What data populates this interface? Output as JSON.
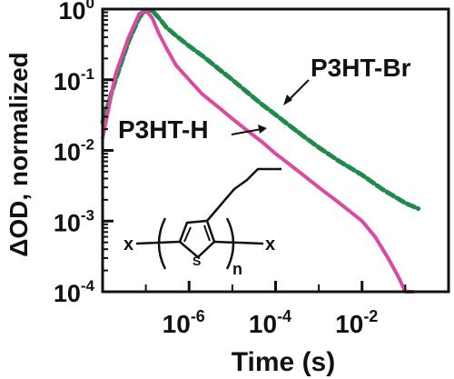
{
  "chart_data": {
    "type": "line",
    "xlabel": "Time (s)",
    "ylabel": "ΔOD, normalized",
    "xscale": "log",
    "yscale": "log",
    "xlim": [
      1e-08,
      1
    ],
    "ylim": [
      0.0001,
      1
    ],
    "x_ticks": [
      {
        "value": 1e-06,
        "base": "10",
        "exp": "-6"
      },
      {
        "value": 0.0001,
        "base": "10",
        "exp": "-4"
      },
      {
        "value": 0.01,
        "base": "10",
        "exp": "-2"
      }
    ],
    "y_ticks": [
      {
        "value": 1,
        "base": "10",
        "exp": "0"
      },
      {
        "value": 0.1,
        "base": "10",
        "exp": "-1"
      },
      {
        "value": 0.01,
        "base": "10",
        "exp": "-2"
      },
      {
        "value": 0.001,
        "base": "10",
        "exp": "-3"
      },
      {
        "value": 0.0001,
        "base": "10",
        "exp": "-4"
      }
    ],
    "series": [
      {
        "name": "P3HT-Br",
        "color": "#1f8a4c",
        "x": [
          1e-08,
          2e-08,
          4e-08,
          7e-08,
          1e-07,
          1.4e-07,
          2e-07,
          3e-07,
          5e-07,
          1e-06,
          2e-06,
          5e-06,
          1e-05,
          2e-05,
          5e-05,
          0.0001,
          0.0002,
          0.0005,
          0.001,
          0.003,
          0.01,
          0.03,
          0.1,
          0.2
        ],
        "y": [
          0.025,
          0.1,
          0.35,
          0.75,
          0.98,
          0.95,
          0.75,
          0.55,
          0.42,
          0.3,
          0.22,
          0.14,
          0.1,
          0.07,
          0.044,
          0.032,
          0.023,
          0.015,
          0.011,
          0.007,
          0.0045,
          0.0028,
          0.0018,
          0.0015
        ]
      },
      {
        "name": "P3HT-H",
        "color": "#d94aa0",
        "x": [
          1e-08,
          2e-08,
          4e-08,
          7e-08,
          1e-07,
          1.4e-07,
          2e-07,
          3e-07,
          5e-07,
          1e-06,
          2e-06,
          5e-06,
          1e-05,
          2e-05,
          5e-05,
          0.0001,
          0.0002,
          0.0005,
          0.001,
          0.003,
          0.01,
          0.02,
          0.04,
          0.07,
          0.1,
          0.15
        ],
        "y": [
          0.015,
          0.12,
          0.4,
          0.85,
          0.97,
          0.75,
          0.45,
          0.28,
          0.16,
          0.1,
          0.063,
          0.04,
          0.028,
          0.02,
          0.013,
          0.009,
          0.0065,
          0.0042,
          0.003,
          0.0018,
          0.001,
          0.0006,
          0.0003,
          0.00016,
          0.0001,
          0.0001
        ]
      }
    ],
    "annotations": [
      {
        "text": "P3HT-Br",
        "series": "P3HT-Br"
      },
      {
        "text": "P3HT-H",
        "series": "P3HT-H"
      }
    ],
    "inset_structure": {
      "end_group": "x",
      "ring_atom": "S",
      "repeat_subscript": "n"
    }
  }
}
